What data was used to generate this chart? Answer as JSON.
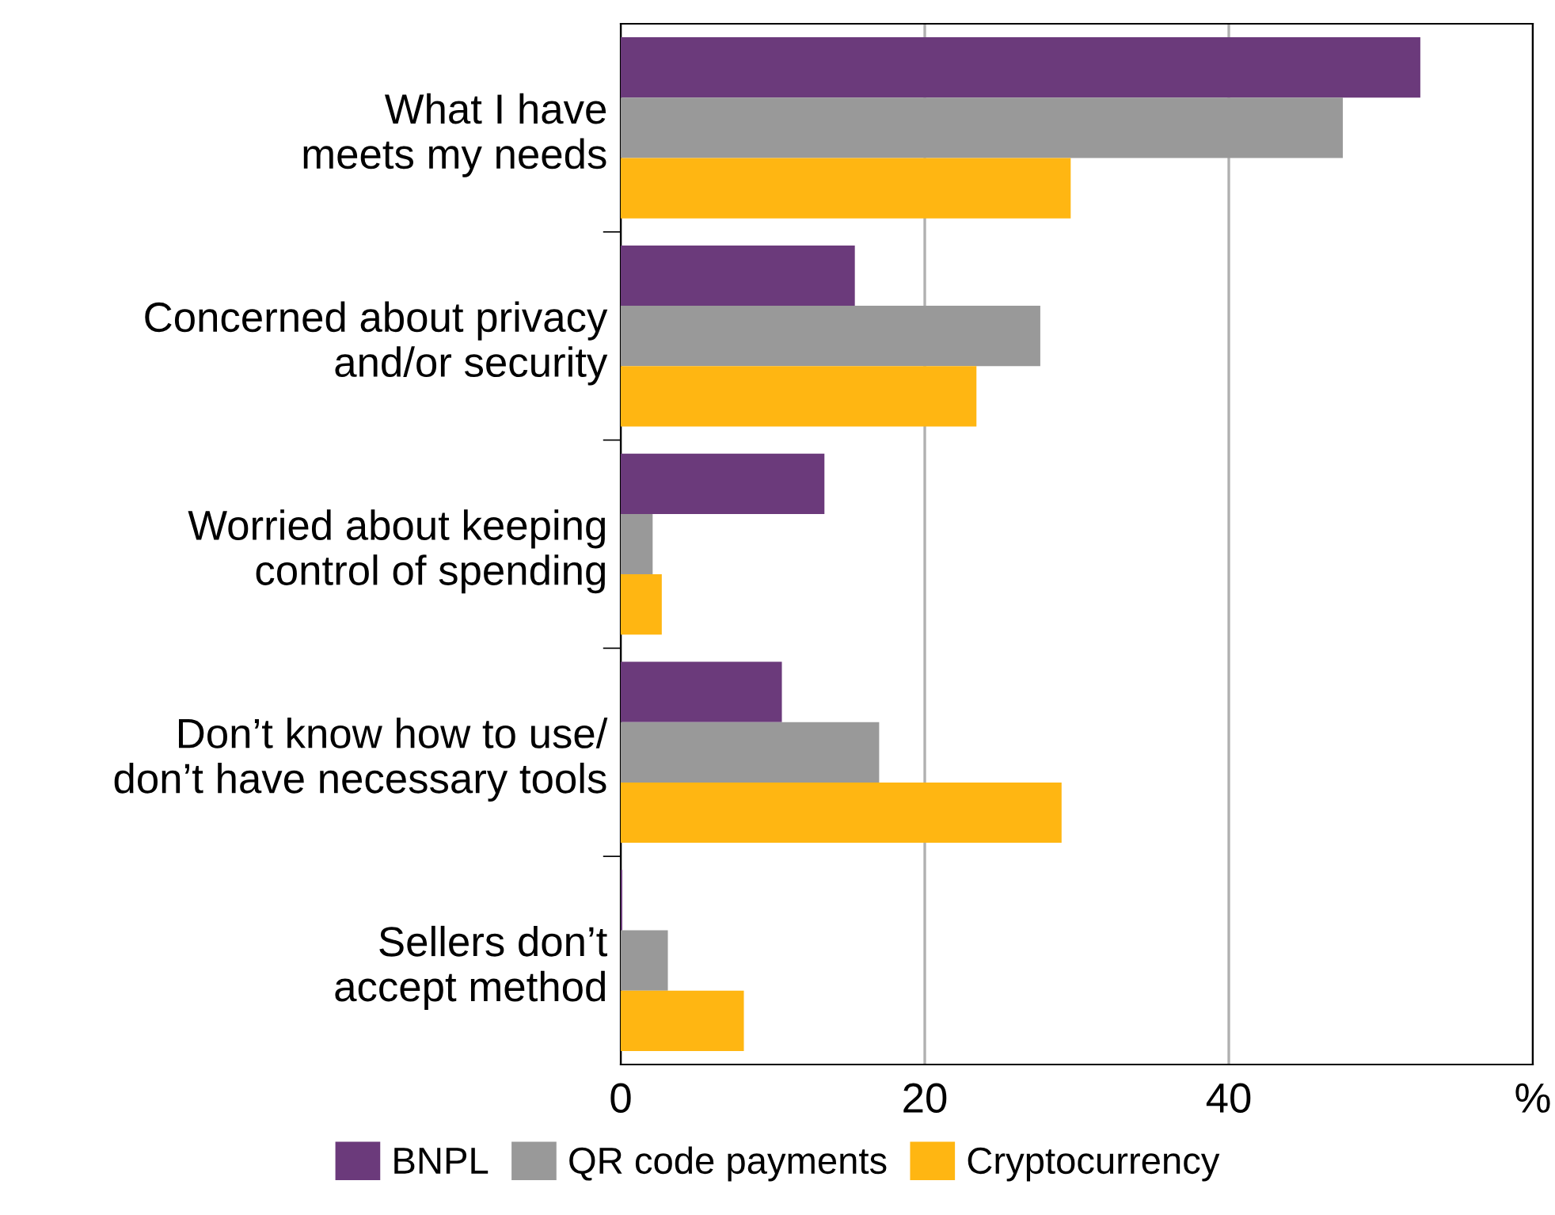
{
  "chart_data": {
    "type": "bar",
    "orientation": "horizontal",
    "categories": [
      "What I have\nmeets my needs",
      "Concerned about privacy\nand/or security",
      "Worried about keeping\ncontrol of spending",
      "Don’t know how to use/\ndon’t have necessary tools",
      "Sellers don’t\naccept method"
    ],
    "series": [
      {
        "name": "BNPL",
        "color": "#6b3a7b",
        "values": [
          52.6,
          15.4,
          13.4,
          10.6,
          0.1
        ]
      },
      {
        "name": "QR code payments",
        "color": "#999999",
        "values": [
          47.5,
          27.6,
          2.1,
          17.0,
          3.1
        ]
      },
      {
        "name": "Cryptocurrency",
        "color": "#ffb612",
        "values": [
          29.6,
          23.4,
          2.7,
          29.0,
          8.1
        ]
      }
    ],
    "xlim": [
      0,
      60
    ],
    "xticks": [
      0,
      20,
      40,
      {
        "value": 60,
        "label": "%"
      }
    ],
    "grid": "x",
    "legend": "bottom"
  }
}
